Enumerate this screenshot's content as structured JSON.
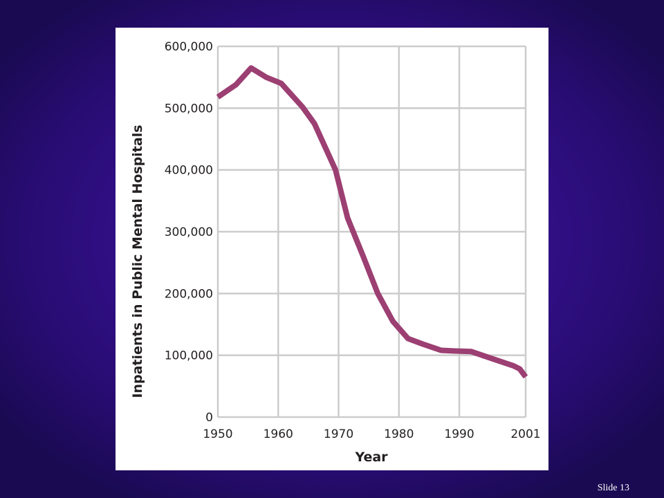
{
  "slide": {
    "number_label": "Slide 13"
  },
  "colors": {
    "background": "#2f0f86",
    "line": "#9c3f72",
    "grid": "#cccccc"
  },
  "chart_data": {
    "type": "line",
    "xlabel": "Year",
    "ylabel": "Inpatients in Public Mental Hospitals",
    "xlim": [
      1950,
      2001
    ],
    "ylim": [
      0,
      600000
    ],
    "x_ticks": [
      1950,
      1960,
      1970,
      1980,
      1990,
      2001
    ],
    "x_tick_labels": [
      "1950",
      "1960",
      "1970",
      "1980",
      "1990",
      "2001"
    ],
    "y_ticks": [
      0,
      100000,
      200000,
      300000,
      400000,
      500000,
      600000
    ],
    "y_tick_labels": [
      "0",
      "100,000",
      "200,000",
      "300,000",
      "400,000",
      "500,000",
      "600,000"
    ],
    "grid": true,
    "series": [
      {
        "x": [
          1950,
          1953,
          1955.5,
          1958,
          1960.5,
          1964,
          1966,
          1969.5,
          1971.5,
          1974,
          1976.5,
          1979,
          1981.5,
          1984,
          1987,
          1989,
          1992,
          1995,
          1999,
          2000,
          2001
        ],
        "y": [
          518000,
          538000,
          565000,
          550000,
          540000,
          502000,
          475000,
          400000,
          322000,
          262000,
          200000,
          155000,
          127000,
          118000,
          108000,
          107000,
          106000,
          96000,
          83000,
          78000,
          65000
        ]
      }
    ]
  }
}
